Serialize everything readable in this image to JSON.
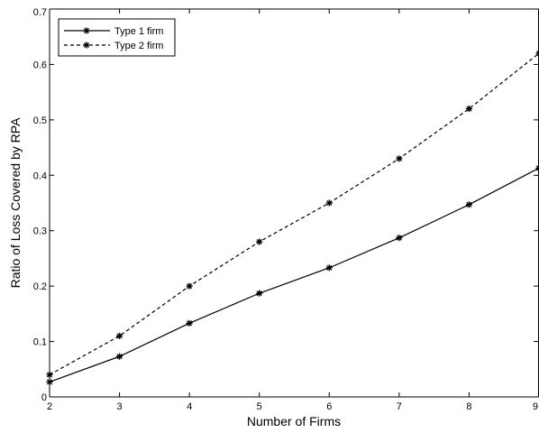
{
  "chart_data": {
    "type": "line",
    "xlabel": "Number of Firms",
    "ylabel": "Ratio of Loss Covered by RPA",
    "xlim": [
      2,
      9
    ],
    "ylim": [
      0,
      0.7
    ],
    "xticks": [
      "2",
      "3",
      "4",
      "5",
      "6",
      "7",
      "8",
      "9"
    ],
    "yticks": [
      "0",
      "0.1",
      "0.2",
      "0.3",
      "0.4",
      "0.5",
      "0.6",
      "0.7"
    ],
    "grid": false,
    "legend_position": "top-left",
    "x": [
      2,
      3,
      4,
      5,
      6,
      7,
      8,
      9
    ],
    "series": [
      {
        "name": "Type 1 firm",
        "line_style": "solid",
        "marker": "asterisk",
        "color": "#000000",
        "values": [
          0.027,
          0.073,
          0.133,
          0.187,
          0.233,
          0.287,
          0.347,
          0.413
        ]
      },
      {
        "name": "Type 2 firm",
        "line_style": "dashed",
        "marker": "asterisk",
        "color": "#000000",
        "values": [
          0.04,
          0.11,
          0.2,
          0.28,
          0.35,
          0.43,
          0.52,
          0.62
        ]
      }
    ]
  }
}
